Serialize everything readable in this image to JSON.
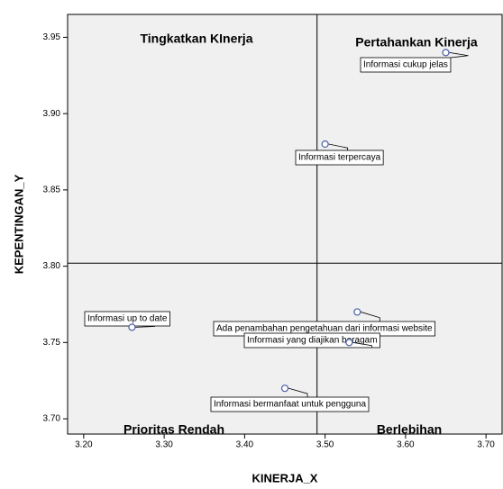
{
  "chart_data": {
    "type": "scatter",
    "x_label": "KINERJA_X",
    "y_label": "KEPENTINGAN_Y",
    "xlim": [
      3.18,
      3.72
    ],
    "ylim": [
      3.69,
      3.965
    ],
    "xticks": [
      {
        "value": 3.2,
        "label": "3.20"
      },
      {
        "value": 3.3,
        "label": "3.30"
      },
      {
        "value": 3.4,
        "label": "3.40"
      },
      {
        "value": 3.5,
        "label": "3.50"
      },
      {
        "value": 3.6,
        "label": "3.60"
      },
      {
        "value": 3.7,
        "label": "3.70"
      }
    ],
    "yticks": [
      {
        "value": 3.7,
        "label": "3.70"
      },
      {
        "value": 3.75,
        "label": "3.75"
      },
      {
        "value": 3.8,
        "label": "3.80"
      },
      {
        "value": 3.85,
        "label": "3.85"
      },
      {
        "value": 3.9,
        "label": "3.90"
      },
      {
        "value": 3.95,
        "label": "3.95"
      }
    ],
    "x_reference": 3.49,
    "y_reference": 3.802,
    "quadrants": [
      "Tingkatkan KInerja",
      "Pertahankan Kinerja",
      "Prioritas Rendah",
      "Berlebihan"
    ],
    "color": "#4a5fa8",
    "points": {
      "x": [
        3.65,
        3.5,
        3.26,
        3.54,
        3.53,
        3.45
      ],
      "y": [
        3.94,
        3.88,
        3.76,
        3.77,
        3.75,
        3.72
      ],
      "labels": [
        "Informasi cukup jelas",
        "Informasi terpercaya",
        "Informasi up to date",
        "Ada penambahan pengetahuan dari informasi website",
        "Informasi yang diajikan beragam",
        "Informasi bermanfaat untuk pengguna"
      ]
    }
  }
}
